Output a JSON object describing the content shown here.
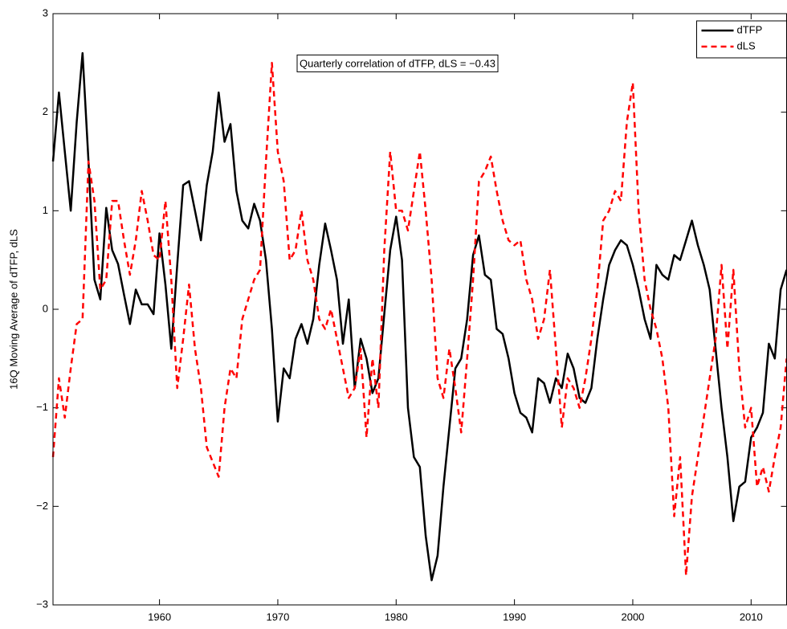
{
  "chart_data": {
    "type": "line",
    "ylabel": "16Q Moving Average of dTFP, dLS",
    "annotation": "Quarterly correlation of dTFP, dLS = −0.43",
    "legend": "upper right",
    "xlim": [
      1951,
      2013
    ],
    "xticks": [
      1960,
      1970,
      1980,
      1990,
      2000,
      2010
    ],
    "ylim": [
      -3,
      3
    ],
    "yticks": [
      {
        "value": -3,
        "label": "−3"
      },
      {
        "value": -2,
        "label": "−2"
      },
      {
        "value": -1,
        "label": "−1"
      },
      0,
      1,
      2,
      3
    ],
    "x": [
      1951,
      1951.5,
      1952,
      1952.5,
      1953,
      1953.5,
      1954,
      1954.5,
      1955,
      1955.5,
      1956,
      1956.5,
      1957,
      1957.5,
      1958,
      1958.5,
      1959,
      1959.5,
      1960,
      1960.5,
      1961,
      1961.5,
      1962,
      1962.5,
      1963,
      1963.5,
      1964,
      1964.5,
      1965,
      1965.5,
      1966,
      1966.5,
      1967,
      1967.5,
      1968,
      1968.5,
      1969,
      1969.5,
      1970,
      1970.5,
      1971,
      1971.5,
      1972,
      1972.5,
      1973,
      1973.5,
      1974,
      1974.5,
      1975,
      1975.5,
      1976,
      1976.5,
      1977,
      1977.5,
      1978,
      1978.5,
      1979,
      1979.5,
      1980,
      1980.5,
      1981,
      1981.5,
      1982,
      1982.5,
      1983,
      1983.5,
      1984,
      1984.5,
      1985,
      1985.5,
      1986,
      1986.5,
      1987,
      1987.5,
      1988,
      1988.5,
      1989,
      1989.5,
      1990,
      1990.5,
      1991,
      1991.5,
      1992,
      1992.5,
      1993,
      1993.5,
      1994,
      1994.5,
      1995,
      1995.5,
      1996,
      1996.5,
      1997,
      1997.5,
      1998,
      1998.5,
      1999,
      1999.5,
      2000,
      2000.5,
      2001,
      2001.5,
      2002,
      2002.5,
      2003,
      2003.5,
      2004,
      2004.5,
      2005,
      2005.5,
      2006,
      2006.5,
      2007,
      2007.5,
      2008,
      2008.5,
      2009,
      2009.5,
      2010,
      2010.5,
      2011,
      2011.5,
      2012,
      2012.5,
      2013
    ],
    "series": [
      {
        "name": "dTFP",
        "color": "#000000",
        "dash": false,
        "values": [
          1.5,
          2.2,
          1.6,
          1.0,
          1.9,
          2.6,
          1.5,
          0.3,
          0.1,
          1.03,
          0.6,
          0.46,
          0.15,
          -0.15,
          0.2,
          0.05,
          0.05,
          -0.05,
          0.77,
          0.25,
          -0.4,
          0.45,
          1.26,
          1.3,
          1.0,
          0.7,
          1.26,
          1.6,
          2.2,
          1.7,
          1.88,
          1.2,
          0.9,
          0.82,
          1.07,
          0.9,
          0.5,
          -0.2,
          -1.14,
          -0.6,
          -0.7,
          -0.3,
          -0.15,
          -0.35,
          -0.1,
          0.45,
          0.87,
          0.6,
          0.3,
          -0.35,
          0.1,
          -0.8,
          -0.3,
          -0.5,
          -0.85,
          -0.7,
          -0.05,
          0.6,
          0.94,
          0.5,
          -1.0,
          -1.5,
          -1.6,
          -2.3,
          -2.75,
          -2.5,
          -1.8,
          -1.2,
          -0.6,
          -0.5,
          -0.1,
          0.55,
          0.75,
          0.35,
          0.3,
          -0.2,
          -0.25,
          -0.5,
          -0.85,
          -1.05,
          -1.1,
          -1.25,
          -0.7,
          -0.75,
          -0.95,
          -0.7,
          -0.8,
          -0.45,
          -0.6,
          -0.9,
          -0.95,
          -0.8,
          -0.3,
          0.1,
          0.45,
          0.6,
          0.7,
          0.65,
          0.45,
          0.2,
          -0.1,
          -0.3,
          0.45,
          0.35,
          0.3,
          0.55,
          0.5,
          0.7,
          0.9,
          0.65,
          0.45,
          0.2,
          -0.4,
          -1.0,
          -1.5,
          -2.15,
          -1.8,
          -1.75,
          -1.3,
          -1.2,
          -1.05,
          -0.35,
          -0.5,
          0.2,
          0.4
        ]
      },
      {
        "name": "dLS",
        "color": "#ff0000",
        "dash": true,
        "values": [
          -1.5,
          -0.7,
          -1.1,
          -0.6,
          -0.15,
          -0.1,
          1.5,
          1.1,
          0.2,
          0.3,
          1.1,
          1.1,
          0.7,
          0.35,
          0.7,
          1.2,
          0.9,
          0.55,
          0.5,
          1.1,
          0.3,
          -0.8,
          -0.3,
          0.25,
          -0.4,
          -0.8,
          -1.4,
          -1.55,
          -1.7,
          -1.0,
          -0.6,
          -0.7,
          -0.1,
          0.1,
          0.3,
          0.4,
          1.5,
          2.5,
          1.6,
          1.3,
          0.5,
          0.6,
          1.0,
          0.5,
          0.3,
          -0.1,
          -0.2,
          0.0,
          -0.3,
          -0.6,
          -0.9,
          -0.8,
          -0.4,
          -1.3,
          -0.5,
          -1.0,
          0.6,
          1.6,
          1.0,
          1.0,
          0.8,
          1.2,
          1.6,
          1.0,
          0.3,
          -0.7,
          -0.9,
          -0.4,
          -0.8,
          -1.25,
          -0.5,
          0.3,
          1.3,
          1.4,
          1.55,
          1.2,
          0.9,
          0.7,
          0.65,
          0.7,
          0.3,
          0.1,
          -0.3,
          -0.1,
          0.4,
          -0.4,
          -1.2,
          -0.7,
          -0.8,
          -1.0,
          -0.7,
          -0.3,
          0.2,
          0.9,
          1.0,
          1.2,
          1.1,
          1.9,
          2.3,
          1.0,
          0.3,
          0.0,
          -0.2,
          -0.5,
          -1.0,
          -2.1,
          -1.5,
          -2.7,
          -1.9,
          -1.5,
          -1.1,
          -0.7,
          -0.3,
          0.45,
          -0.4,
          0.4,
          -0.6,
          -1.2,
          -1.0,
          -1.8,
          -1.6,
          -1.85,
          -1.5,
          -1.2,
          -0.5
        ]
      }
    ]
  }
}
